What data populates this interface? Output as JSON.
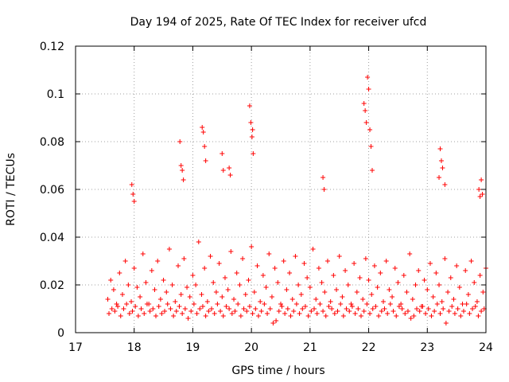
{
  "chart_data": {
    "type": "scatter",
    "title": "Day 194 of 2025, Rate Of TEC Index for receiver ufcd",
    "xlabel": "GPS time / hours",
    "ylabel": "ROTI / TECUs",
    "xlim": [
      17,
      24
    ],
    "ylim": [
      0,
      0.12
    ],
    "xticks": [
      17,
      18,
      19,
      20,
      21,
      22,
      23,
      24
    ],
    "yticks": [
      0,
      0.02,
      0.04,
      0.06,
      0.08,
      0.1,
      0.12
    ],
    "xtick_labels": [
      "17",
      "18",
      "19",
      "20",
      "21",
      "22",
      "23",
      "24"
    ],
    "ytick_labels": [
      "0",
      "0.02",
      "0.04",
      "0.06",
      "0.08",
      "0.1",
      "0.12"
    ],
    "grid": true,
    "marker": "+",
    "series": [
      {
        "name": "ROTI",
        "color": "#ff0000",
        "x": [
          17.55,
          17.6,
          17.65,
          17.7,
          17.75,
          17.8,
          17.85,
          17.9,
          17.95,
          18.0,
          18.05,
          18.1,
          18.15,
          18.2,
          18.25,
          18.3,
          18.35,
          18.4,
          18.45,
          18.5,
          18.55,
          18.6,
          18.65,
          18.7,
          18.75,
          18.8,
          18.85,
          18.9,
          18.95,
          19.0,
          19.05,
          19.1,
          19.15,
          19.2,
          19.25,
          19.3,
          19.35,
          19.4,
          19.45,
          19.5,
          19.55,
          19.6,
          19.65,
          19.7,
          19.75,
          19.8,
          19.85,
          19.9,
          19.95,
          20.0,
          20.05,
          20.1,
          20.15,
          20.2,
          20.25,
          20.3,
          20.35,
          20.4,
          20.45,
          20.5,
          20.55,
          20.6,
          20.65,
          20.7,
          20.75,
          20.8,
          20.85,
          20.9,
          20.95,
          21.0,
          21.05,
          21.1,
          21.15,
          21.2,
          21.25,
          21.3,
          21.35,
          21.4,
          21.45,
          21.5,
          21.55,
          21.6,
          21.65,
          21.7,
          21.75,
          21.8,
          21.85,
          21.9,
          21.95,
          22.0,
          22.05,
          22.1,
          22.15,
          22.2,
          22.25,
          22.3,
          22.35,
          22.4,
          22.45,
          22.5,
          22.55,
          22.6,
          22.65,
          22.7,
          22.75,
          22.8,
          22.85,
          22.9,
          22.95,
          23.0,
          23.05,
          23.1,
          23.15,
          23.2,
          23.25,
          23.3,
          23.35,
          23.4,
          23.45,
          23.5,
          23.55,
          23.6,
          23.65,
          23.7,
          23.75,
          23.8,
          23.85,
          23.9,
          23.95,
          24.0,
          17.57,
          17.62,
          17.67,
          17.72,
          17.77,
          17.82,
          17.87,
          17.92,
          17.97,
          18.02,
          18.07,
          18.12,
          18.17,
          18.22,
          18.27,
          18.32,
          18.37,
          18.42,
          18.47,
          18.52,
          18.57,
          18.62,
          18.67,
          18.72,
          18.77,
          18.82,
          18.87,
          18.92,
          18.97,
          19.02,
          19.07,
          19.12,
          19.17,
          19.22,
          19.27,
          19.32,
          19.37,
          19.42,
          19.47,
          19.52,
          19.57,
          19.62,
          19.67,
          19.72,
          19.77,
          19.82,
          19.87,
          19.92,
          19.97,
          20.02,
          20.07,
          20.12,
          20.17,
          20.22,
          20.27,
          20.32,
          20.37,
          20.42,
          20.47,
          20.52,
          20.57,
          20.62,
          20.67,
          20.72,
          20.77,
          20.82,
          20.87,
          20.92,
          20.97,
          21.02,
          21.07,
          21.12,
          21.17,
          21.22,
          21.27,
          21.32,
          21.37,
          21.42,
          21.47,
          21.52,
          21.57,
          21.62,
          21.67,
          21.72,
          21.77,
          21.82,
          21.87,
          21.92,
          21.97,
          22.02,
          22.07,
          22.12,
          22.17,
          22.22,
          22.27,
          22.32,
          22.37,
          22.42,
          22.47,
          22.52,
          22.57,
          22.62,
          22.67,
          22.72,
          22.77,
          22.82,
          22.87,
          22.92,
          22.97,
          23.02,
          23.07,
          23.12,
          23.17,
          23.22,
          23.27,
          23.32,
          23.37,
          23.42,
          23.47,
          23.52,
          23.57,
          23.62,
          23.67,
          23.72,
          23.77,
          23.82,
          23.87,
          23.92,
          23.97,
          17.96,
          17.98,
          18.0,
          18.78,
          18.8,
          18.82,
          18.84,
          19.16,
          19.18,
          19.2,
          19.22,
          19.5,
          19.52,
          19.62,
          19.64,
          19.97,
          19.99,
          20.01,
          20.02,
          20.03,
          21.22,
          21.24,
          21.92,
          21.94,
          21.96,
          21.98,
          22.0,
          22.02,
          22.04,
          22.06,
          23.2,
          23.22,
          23.24,
          23.26,
          23.3,
          23.88,
          23.9,
          23.92,
          23.94
        ],
        "y": [
          0.014,
          0.022,
          0.018,
          0.012,
          0.025,
          0.016,
          0.03,
          0.02,
          0.013,
          0.027,
          0.019,
          0.015,
          0.033,
          0.021,
          0.012,
          0.026,
          0.018,
          0.03,
          0.014,
          0.022,
          0.017,
          0.035,
          0.02,
          0.013,
          0.028,
          0.016,
          0.031,
          0.019,
          0.015,
          0.024,
          0.02,
          0.038,
          0.016,
          0.027,
          0.013,
          0.032,
          0.021,
          0.017,
          0.029,
          0.015,
          0.023,
          0.018,
          0.034,
          0.014,
          0.025,
          0.02,
          0.031,
          0.016,
          0.022,
          0.036,
          0.017,
          0.028,
          0.013,
          0.024,
          0.019,
          0.033,
          0.015,
          0.027,
          0.021,
          0.012,
          0.03,
          0.018,
          0.025,
          0.014,
          0.032,
          0.02,
          0.016,
          0.029,
          0.023,
          0.019,
          0.035,
          0.014,
          0.027,
          0.021,
          0.017,
          0.03,
          0.013,
          0.024,
          0.018,
          0.032,
          0.015,
          0.026,
          0.02,
          0.012,
          0.029,
          0.017,
          0.023,
          0.014,
          0.031,
          0.022,
          0.016,
          0.028,
          0.019,
          0.025,
          0.013,
          0.03,
          0.018,
          0.015,
          0.027,
          0.021,
          0.012,
          0.024,
          0.017,
          0.033,
          0.014,
          0.02,
          0.026,
          0.011,
          0.022,
          0.018,
          0.029,
          0.015,
          0.025,
          0.02,
          0.013,
          0.031,
          0.017,
          0.023,
          0.014,
          0.028,
          0.019,
          0.012,
          0.026,
          0.016,
          0.03,
          0.021,
          0.013,
          0.024,
          0.017,
          0.027,
          0.008,
          0.01,
          0.009,
          0.011,
          0.007,
          0.01,
          0.012,
          0.008,
          0.009,
          0.011,
          0.007,
          0.01,
          0.008,
          0.012,
          0.009,
          0.01,
          0.007,
          0.011,
          0.008,
          0.009,
          0.012,
          0.01,
          0.007,
          0.009,
          0.011,
          0.008,
          0.01,
          0.006,
          0.009,
          0.012,
          0.008,
          0.01,
          0.011,
          0.007,
          0.009,
          0.01,
          0.008,
          0.012,
          0.009,
          0.007,
          0.011,
          0.01,
          0.008,
          0.009,
          0.012,
          0.007,
          0.01,
          0.009,
          0.011,
          0.008,
          0.01,
          0.007,
          0.009,
          0.012,
          0.008,
          0.01,
          0.004,
          0.005,
          0.009,
          0.011,
          0.008,
          0.01,
          0.007,
          0.009,
          0.012,
          0.008,
          0.01,
          0.011,
          0.007,
          0.009,
          0.01,
          0.008,
          0.012,
          0.009,
          0.007,
          0.011,
          0.01,
          0.008,
          0.009,
          0.012,
          0.007,
          0.01,
          0.009,
          0.011,
          0.008,
          0.01,
          0.007,
          0.009,
          0.012,
          0.008,
          0.01,
          0.011,
          0.007,
          0.009,
          0.01,
          0.008,
          0.012,
          0.009,
          0.007,
          0.011,
          0.01,
          0.008,
          0.009,
          0.006,
          0.007,
          0.01,
          0.009,
          0.011,
          0.008,
          0.01,
          0.007,
          0.009,
          0.012,
          0.008,
          0.01,
          0.004,
          0.009,
          0.011,
          0.008,
          0.01,
          0.007,
          0.009,
          0.012,
          0.008,
          0.01,
          0.011,
          0.007,
          0.009,
          0.01,
          0.062,
          0.058,
          0.055,
          0.08,
          0.07,
          0.068,
          0.064,
          0.086,
          0.084,
          0.078,
          0.072,
          0.075,
          0.068,
          0.069,
          0.066,
          0.095,
          0.088,
          0.082,
          0.085,
          0.075,
          0.065,
          0.06,
          0.096,
          0.093,
          0.088,
          0.107,
          0.102,
          0.085,
          0.078,
          0.068,
          0.065,
          0.077,
          0.072,
          0.069,
          0.062,
          0.06,
          0.057,
          0.064,
          0.058
        ]
      }
    ]
  }
}
